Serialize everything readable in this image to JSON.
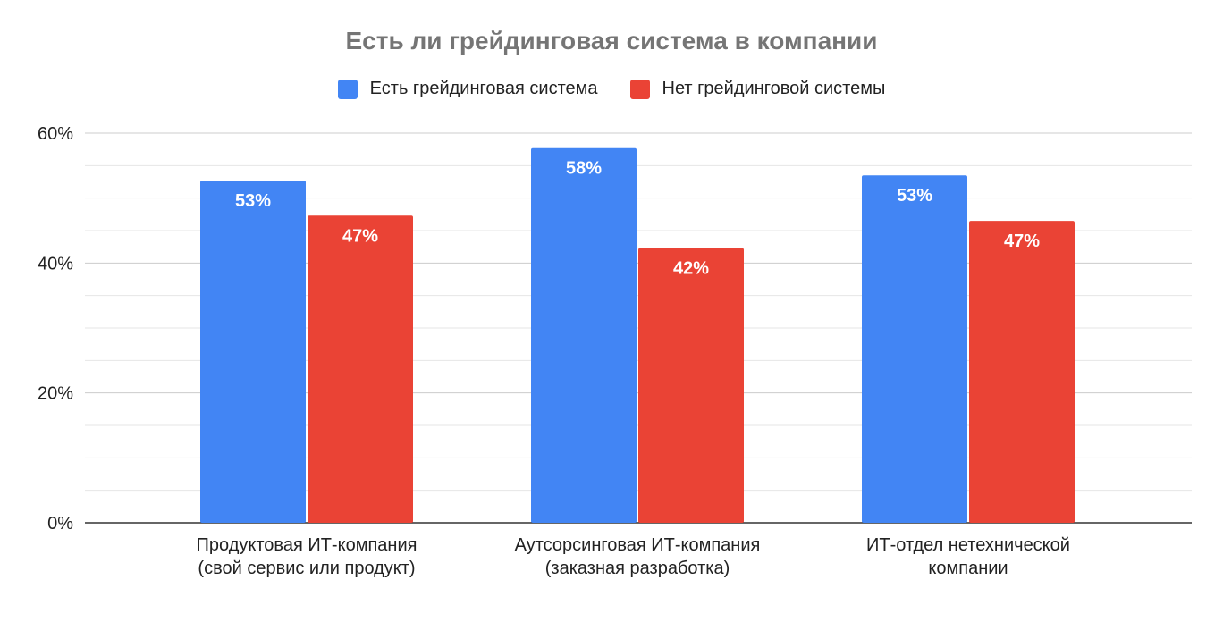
{
  "chart_data": {
    "type": "bar",
    "title": "Есть ли грейдинговая система в компании",
    "xlabel": "",
    "ylabel": "",
    "ylim": [
      0,
      60
    ],
    "yticks": [
      "0%",
      "20%",
      "40%",
      "60%"
    ],
    "minor_grid_step": 5,
    "grid": true,
    "legend_position": "top",
    "categories": [
      [
        "Продуктовая ИТ-компания",
        "(свой сервис или продукт)"
      ],
      [
        "Аутсорсинговая ИТ-компания",
        "(заказная разработка)"
      ],
      [
        "ИТ-отдел нетехнической",
        "компании"
      ]
    ],
    "series": [
      {
        "name": "Есть грейдинговая система",
        "color": "#4285F4",
        "values": [
          52.7,
          57.7,
          53.5
        ],
        "labels": [
          "53%",
          "58%",
          "53%"
        ]
      },
      {
        "name": "Нет грейдинговой системы",
        "color": "#EA4335",
        "values": [
          47.3,
          42.3,
          46.5
        ],
        "labels": [
          "47%",
          "42%",
          "47%"
        ]
      }
    ]
  }
}
